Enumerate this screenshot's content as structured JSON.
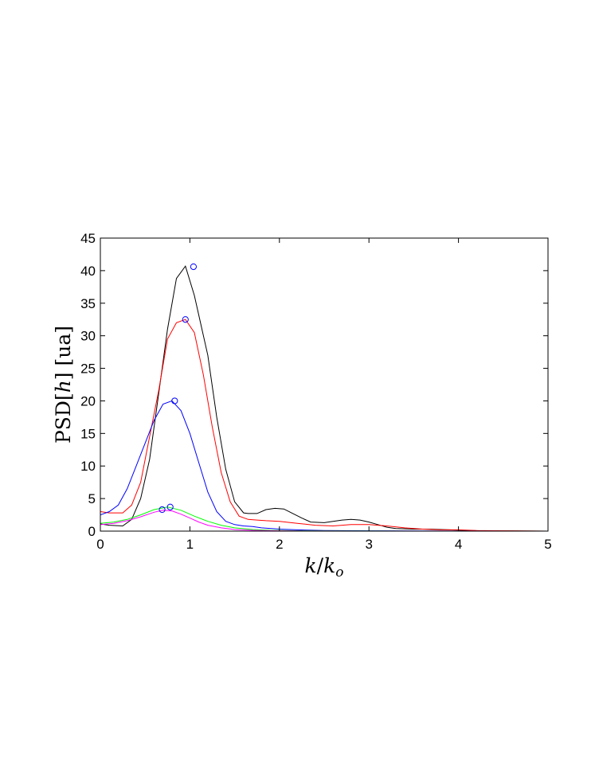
{
  "chart_data": {
    "type": "line",
    "title": "",
    "xlabel": "k/k_o",
    "ylabel": "PSD[h] [ua]",
    "xlim": [
      0,
      5
    ],
    "ylim": [
      0,
      45
    ],
    "xticks": [
      0,
      1,
      2,
      3,
      4,
      5
    ],
    "yticks": [
      0,
      5,
      10,
      15,
      20,
      25,
      30,
      35,
      40,
      45
    ],
    "grid": false,
    "legend": "none",
    "series": [
      {
        "color": "#000000",
        "x": [
          0,
          0.1,
          0.25,
          0.35,
          0.45,
          0.55,
          0.65,
          0.75,
          0.85,
          0.95,
          1.05,
          1.2,
          1.3,
          1.4,
          1.5,
          1.6,
          1.65,
          1.75,
          1.85,
          1.95,
          2.05,
          2.15,
          2.25,
          2.35,
          2.5,
          2.6,
          2.7,
          2.8,
          2.9,
          3.0,
          3.1,
          3.2,
          3.3,
          3.5,
          3.7,
          3.9,
          4.1,
          4.3,
          4.6,
          5.0
        ],
        "y": [
          1.1,
          0.9,
          0.8,
          1.8,
          5.0,
          11.0,
          21.0,
          31.0,
          38.8,
          40.7,
          36.2,
          27.0,
          17.5,
          9.5,
          4.5,
          2.8,
          2.7,
          2.7,
          3.3,
          3.5,
          3.4,
          2.7,
          2.0,
          1.4,
          1.3,
          1.5,
          1.7,
          1.8,
          1.7,
          1.4,
          1.0,
          0.6,
          0.4,
          0.3,
          0.3,
          0.2,
          0.1,
          0.05,
          0.02,
          0.0
        ],
        "peak": [
          1.04,
          40.6
        ]
      },
      {
        "color": "#ff0000",
        "x": [
          0,
          0.1,
          0.25,
          0.35,
          0.45,
          0.55,
          0.65,
          0.75,
          0.85,
          0.95,
          1.05,
          1.15,
          1.25,
          1.35,
          1.45,
          1.55,
          1.65,
          1.75,
          1.85,
          2.0,
          2.2,
          2.4,
          2.6,
          2.8,
          3.0,
          3.2,
          3.4,
          3.6,
          3.8,
          4.0,
          4.2,
          4.5,
          5.0
        ],
        "y": [
          3.0,
          2.8,
          2.8,
          4.0,
          7.5,
          14.5,
          21.5,
          29.5,
          32.0,
          32.5,
          30.5,
          24.0,
          16.0,
          9.0,
          4.5,
          2.3,
          1.8,
          1.7,
          1.6,
          1.5,
          1.2,
          0.9,
          0.8,
          1.0,
          1.0,
          0.8,
          0.5,
          0.3,
          0.2,
          0.2,
          0.1,
          0.05,
          0.0
        ],
        "peak": [
          0.95,
          32.5
        ]
      },
      {
        "color": "#0000ff",
        "x": [
          0,
          0.1,
          0.2,
          0.3,
          0.4,
          0.5,
          0.6,
          0.7,
          0.8,
          0.9,
          1.0,
          1.1,
          1.2,
          1.3,
          1.4,
          1.5,
          1.6,
          1.7,
          1.8,
          2.0,
          2.2,
          2.5,
          3.0,
          3.5,
          4.0,
          5.0
        ],
        "y": [
          2.5,
          3.0,
          4.0,
          6.5,
          10.0,
          13.5,
          17.0,
          19.5,
          20.0,
          18.5,
          15.0,
          10.5,
          6.0,
          3.0,
          1.5,
          1.0,
          0.8,
          0.7,
          0.5,
          0.3,
          0.2,
          0.1,
          0.05,
          0.02,
          0.01,
          0.0
        ],
        "peak": [
          0.83,
          20.0
        ]
      },
      {
        "color": "#00ff00",
        "x": [
          0,
          0.15,
          0.3,
          0.45,
          0.6,
          0.75,
          0.9,
          1.05,
          1.2,
          1.35,
          1.5,
          1.7,
          1.9,
          2.2,
          2.5,
          3.0,
          3.5,
          4.0,
          5.0
        ],
        "y": [
          1.2,
          1.4,
          1.8,
          2.5,
          3.3,
          3.7,
          3.2,
          2.3,
          1.5,
          0.9,
          0.5,
          0.25,
          0.12,
          0.06,
          0.03,
          0.01,
          0.0,
          0.0,
          0.0
        ],
        "peak": [
          0.78,
          3.7
        ]
      },
      {
        "color": "#ff00ff",
        "x": [
          0,
          0.15,
          0.3,
          0.45,
          0.6,
          0.7,
          0.8,
          0.9,
          1.0,
          1.1,
          1.2,
          1.35,
          1.5,
          1.7,
          1.9,
          2.2,
          2.5,
          3.0,
          3.5,
          4.0,
          5.0
        ],
        "y": [
          1.0,
          1.2,
          1.6,
          2.2,
          2.9,
          3.2,
          3.1,
          2.6,
          2.0,
          1.4,
          0.9,
          0.5,
          0.25,
          0.12,
          0.06,
          0.03,
          0.01,
          0.0,
          0.0,
          0.0,
          0.0
        ],
        "peak": [
          0.69,
          3.3
        ]
      }
    ]
  }
}
